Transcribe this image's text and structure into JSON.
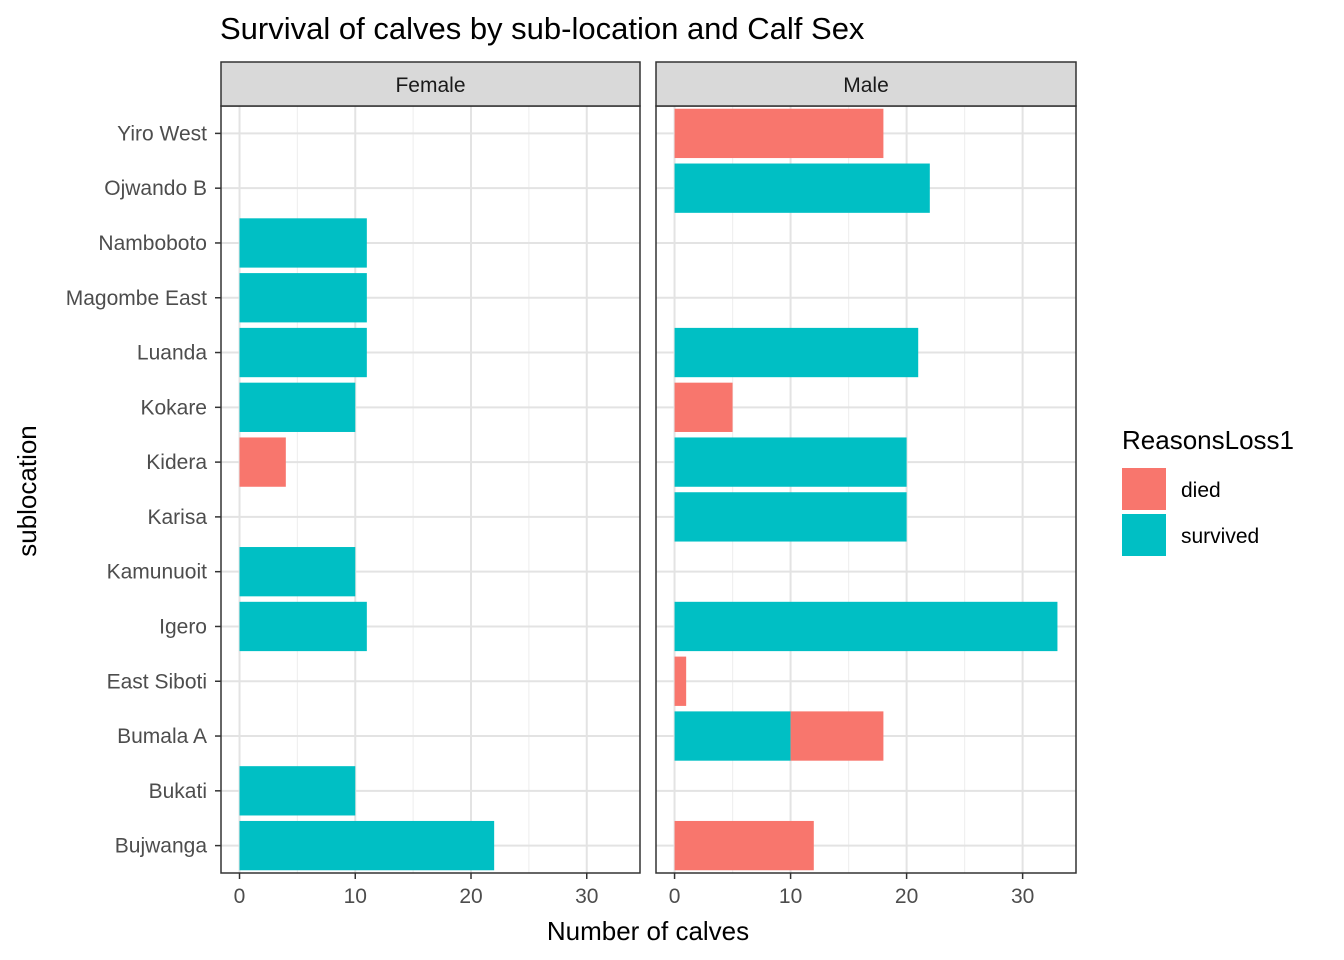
{
  "chart_data": {
    "type": "bar",
    "orientation": "horizontal",
    "stacked": true,
    "title": "Survival of calves by sub-location and Calf Sex",
    "xlabel": "Number of calves",
    "ylabel": "sublocation",
    "xlim": [
      -1.6,
      34.6
    ],
    "x_ticks": [
      0,
      10,
      20,
      30
    ],
    "grid": true,
    "legend": {
      "title": "ReasonsLoss1",
      "position": "right",
      "entries": [
        {
          "key": "died",
          "label": "died",
          "color": "#F8766D"
        },
        {
          "key": "survived",
          "label": "survived",
          "color": "#00BFC4"
        }
      ]
    },
    "categories": [
      "Yiro West",
      "Ojwando B",
      "Namboboto",
      "Magombe East",
      "Luanda",
      "Kokare",
      "Kidera",
      "Karisa",
      "Kamunuoit",
      "Igero",
      "East Siboti",
      "Bumala A",
      "Bukati",
      "Bujwanga"
    ],
    "facets": [
      {
        "name": "Female",
        "series": [
          {
            "key": "survived",
            "values": [
              0,
              0,
              11,
              11,
              11,
              10,
              0,
              0,
              10,
              11,
              0,
              0,
              10,
              22
            ]
          },
          {
            "key": "died",
            "values": [
              0,
              0,
              0,
              0,
              0,
              0,
              4,
              0,
              0,
              0,
              0,
              0,
              0,
              0
            ]
          }
        ]
      },
      {
        "name": "Male",
        "series": [
          {
            "key": "survived",
            "values": [
              0,
              22,
              0,
              0,
              21,
              0,
              20,
              20,
              0,
              33,
              0,
              10,
              0,
              0
            ]
          },
          {
            "key": "died",
            "values": [
              18,
              0,
              0,
              0,
              0,
              5,
              0,
              0,
              0,
              0,
              1,
              8,
              0,
              12
            ]
          }
        ]
      }
    ]
  }
}
